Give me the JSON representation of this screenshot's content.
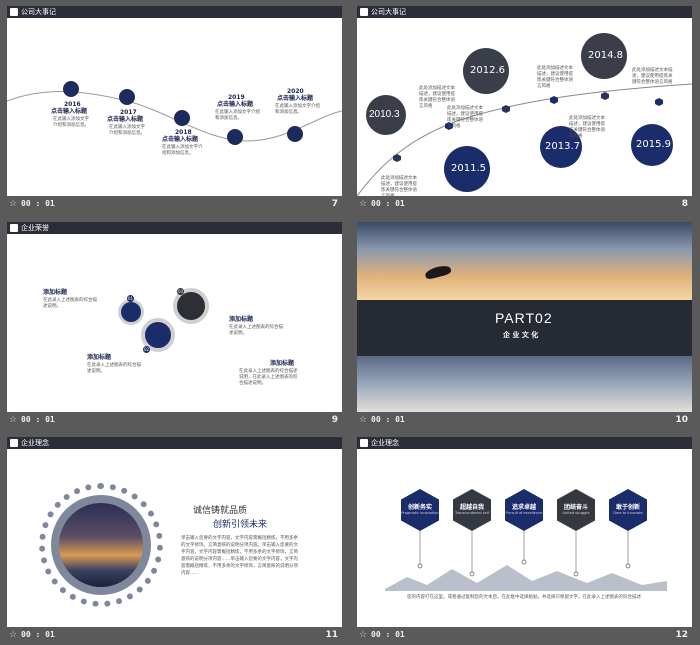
{
  "colors": {
    "navy": "#17224d",
    "dark": "#2b2e38",
    "hex_navy": "#1b2c6a",
    "hex_dark": "#333841"
  },
  "slides": [
    {
      "header": "公司大事记",
      "time": "00 : 01",
      "number": "7",
      "milestones": [
        {
          "year": "2016",
          "title": "点击输入标题",
          "desc": "在此输入添加文字介绍和添加信息。"
        },
        {
          "year": "2017",
          "title": "点击输入标题",
          "desc": "在此输入添加文字介绍和添加信息。"
        },
        {
          "year": "2018",
          "title": "点击输入标题",
          "desc": "在此输入添加文字介绍和添加信息。"
        },
        {
          "year": "2019",
          "title": "点击输入标题",
          "desc": "在此输入添加文字介绍和添加信息。"
        },
        {
          "year": "2020",
          "title": "点击输入标题",
          "desc": "在此输入添加文字介绍和添加信息。"
        }
      ]
    },
    {
      "header": "公司大事记",
      "time": "00 : 01",
      "number": "8",
      "bubbles": [
        "2010.3",
        "2011.5",
        "2012.6",
        "2013.7",
        "2014.8",
        "2015.9"
      ],
      "bubble_desc": "此处添加描述文本描述，建议使用提炼关键符合整体语言风格"
    },
    {
      "header": "企业荣誉",
      "time": "00 : 01",
      "number": "9",
      "items": [
        {
          "num": "01",
          "title": "添加标题",
          "desc": "在此录入上述图表的综合描述说明。"
        },
        {
          "num": "02",
          "title": "添加标题",
          "desc": "在此录入上述图表的综合描述说明。"
        },
        {
          "num": "03",
          "title": "添加标题",
          "desc": "在此录入上述图表的综合描述说明。"
        }
      ],
      "extra": {
        "title": "添加标题",
        "desc": "在此录入上述图表的综合描述说明，在此录入上述图表的综合描述说明。"
      }
    },
    {
      "time": "00 : 01",
      "number": "10",
      "part": "PART02",
      "subtitle": "企 业 文 化"
    },
    {
      "header": "企业理念",
      "time": "00 : 01",
      "number": "11",
      "headline1": "诚信铸就品质",
      "headline2": "创新引领未来",
      "body": "单击输入您要的文字内容，文字内容需概括精炼，不用多余的文字修饰，言简意赅的说明分项内容。单击输入您要的文字内容，文字内容需概括精炼，不用多余的文字修饰，言简意赅的说明分项内容……单击输入您要的文字内容，文字内容需概括精炼，不用多余的文字修饰，言简意赅的说明分项内容……"
    },
    {
      "header": "企业理念",
      "time": "00 : 01",
      "number": "12",
      "hexes": [
        {
          "title": "创新务实",
          "sub": "Pragmatic innovation"
        },
        {
          "title": "超越自我",
          "sub": "Transcendental self"
        },
        {
          "title": "追求卓越",
          "sub": "Pursuit of excellence"
        },
        {
          "title": "团结奋斗",
          "sub": "United struggle"
        },
        {
          "title": "敢于创新",
          "sub": "Dare to innovate"
        }
      ],
      "footer": "您的内容打在这里，或者通过复制您的文本后，在此框中选择粘贴，并选择只保留文字。在此录入上述图表的综合描述"
    }
  ]
}
